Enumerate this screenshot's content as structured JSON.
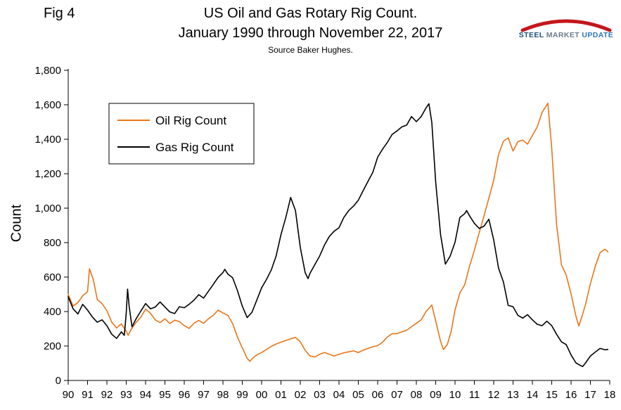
{
  "fig_label": "Fig 4",
  "title_line1": "US Oil and Gas Rotary Rig Count.",
  "title_line2": "January 1990 through November 22, 2017",
  "source": "Source Baker Hughes.",
  "logo": {
    "steel": "STEEL",
    "market": "MARKET",
    "update": "UPDATE",
    "swoosh_color": "#c4161c"
  },
  "chart_data": {
    "type": "line",
    "title": "US Oil and Gas Rotary Rig Count.",
    "subtitle": "January 1990 through November 22, 2017",
    "source": "Source Baker Hughes.",
    "xlabel": "",
    "ylabel": "Count",
    "xlim": [
      1990,
      2018
    ],
    "ylim": [
      0,
      1800
    ],
    "grid": false,
    "legend_position": "upper-left",
    "y_ticks": [
      {
        "value": 0,
        "label": "0"
      },
      {
        "value": 200,
        "label": "200"
      },
      {
        "value": 400,
        "label": "400"
      },
      {
        "value": 600,
        "label": "600"
      },
      {
        "value": 800,
        "label": "800"
      },
      {
        "value": 1000,
        "label": "1,000"
      },
      {
        "value": 1200,
        "label": "1,200"
      },
      {
        "value": 1400,
        "label": "1,400"
      },
      {
        "value": 1600,
        "label": "1,600"
      },
      {
        "value": 1800,
        "label": "1,800"
      }
    ],
    "x_ticks": [
      {
        "value": 1990,
        "label": "90"
      },
      {
        "value": 1991,
        "label": "91"
      },
      {
        "value": 1992,
        "label": "92"
      },
      {
        "value": 1993,
        "label": "93"
      },
      {
        "value": 1994,
        "label": "94"
      },
      {
        "value": 1995,
        "label": "95"
      },
      {
        "value": 1996,
        "label": "96"
      },
      {
        "value": 1997,
        "label": "97"
      },
      {
        "value": 1998,
        "label": "98"
      },
      {
        "value": 1999,
        "label": "99"
      },
      {
        "value": 2000,
        "label": "00"
      },
      {
        "value": 2001,
        "label": "01"
      },
      {
        "value": 2002,
        "label": "02"
      },
      {
        "value": 2003,
        "label": "03"
      },
      {
        "value": 2004,
        "label": "04"
      },
      {
        "value": 2005,
        "label": "05"
      },
      {
        "value": 2006,
        "label": "06"
      },
      {
        "value": 2007,
        "label": "07"
      },
      {
        "value": 2008,
        "label": "08"
      },
      {
        "value": 2009,
        "label": "09"
      },
      {
        "value": 2010,
        "label": "10"
      },
      {
        "value": 2011,
        "label": "11"
      },
      {
        "value": 2012,
        "label": "12"
      },
      {
        "value": 2013,
        "label": "13"
      },
      {
        "value": 2014,
        "label": "14"
      },
      {
        "value": 2015,
        "label": "15"
      },
      {
        "value": 2016,
        "label": "16"
      },
      {
        "value": 2017,
        "label": "17"
      },
      {
        "value": 2018,
        "label": "18"
      }
    ],
    "series": [
      {
        "name": "Oil Rig Count",
        "data_name": "oil-rig-count-line",
        "color": "#e8761b",
        "points": [
          [
            1990.0,
            500
          ],
          [
            1990.25,
            432
          ],
          [
            1990.5,
            452
          ],
          [
            1990.75,
            492
          ],
          [
            1991.0,
            515
          ],
          [
            1991.1,
            648
          ],
          [
            1991.3,
            585
          ],
          [
            1991.5,
            470
          ],
          [
            1991.75,
            446
          ],
          [
            1992.0,
            405
          ],
          [
            1992.25,
            338
          ],
          [
            1992.5,
            305
          ],
          [
            1992.75,
            328
          ],
          [
            1993.0,
            286
          ],
          [
            1993.1,
            262
          ],
          [
            1993.25,
            296
          ],
          [
            1993.5,
            336
          ],
          [
            1993.75,
            366
          ],
          [
            1994.0,
            414
          ],
          [
            1994.25,
            390
          ],
          [
            1994.5,
            352
          ],
          [
            1994.75,
            336
          ],
          [
            1995.0,
            358
          ],
          [
            1995.25,
            330
          ],
          [
            1995.5,
            350
          ],
          [
            1995.75,
            342
          ],
          [
            1996.0,
            318
          ],
          [
            1996.25,
            302
          ],
          [
            1996.5,
            332
          ],
          [
            1996.75,
            348
          ],
          [
            1997.0,
            332
          ],
          [
            1997.25,
            358
          ],
          [
            1997.5,
            378
          ],
          [
            1997.75,
            408
          ],
          [
            1998.0,
            392
          ],
          [
            1998.25,
            378
          ],
          [
            1998.5,
            330
          ],
          [
            1998.75,
            252
          ],
          [
            1999.0,
            190
          ],
          [
            1999.25,
            128
          ],
          [
            1999.4,
            111
          ],
          [
            1999.5,
            126
          ],
          [
            1999.75,
            148
          ],
          [
            2000.0,
            162
          ],
          [
            2000.25,
            180
          ],
          [
            2000.5,
            198
          ],
          [
            2000.75,
            212
          ],
          [
            2001.0,
            222
          ],
          [
            2001.25,
            232
          ],
          [
            2001.5,
            242
          ],
          [
            2001.75,
            250
          ],
          [
            2002.0,
            225
          ],
          [
            2002.25,
            175
          ],
          [
            2002.5,
            142
          ],
          [
            2002.75,
            136
          ],
          [
            2003.0,
            152
          ],
          [
            2003.25,
            162
          ],
          [
            2003.5,
            152
          ],
          [
            2003.75,
            142
          ],
          [
            2004.0,
            152
          ],
          [
            2004.25,
            161
          ],
          [
            2004.5,
            166
          ],
          [
            2004.75,
            172
          ],
          [
            2005.0,
            162
          ],
          [
            2005.25,
            176
          ],
          [
            2005.5,
            186
          ],
          [
            2005.75,
            196
          ],
          [
            2006.0,
            202
          ],
          [
            2006.25,
            222
          ],
          [
            2006.5,
            252
          ],
          [
            2006.75,
            272
          ],
          [
            2007.0,
            272
          ],
          [
            2007.25,
            282
          ],
          [
            2007.5,
            292
          ],
          [
            2007.75,
            312
          ],
          [
            2008.0,
            332
          ],
          [
            2008.25,
            352
          ],
          [
            2008.5,
            400
          ],
          [
            2008.8,
            438
          ],
          [
            2009.0,
            345
          ],
          [
            2009.25,
            228
          ],
          [
            2009.4,
            179
          ],
          [
            2009.6,
            208
          ],
          [
            2009.8,
            285
          ],
          [
            2010.0,
            410
          ],
          [
            2010.25,
            508
          ],
          [
            2010.5,
            556
          ],
          [
            2010.75,
            662
          ],
          [
            2011.0,
            756
          ],
          [
            2011.25,
            858
          ],
          [
            2011.5,
            956
          ],
          [
            2011.75,
            1058
          ],
          [
            2012.0,
            1162
          ],
          [
            2012.25,
            1312
          ],
          [
            2012.5,
            1388
          ],
          [
            2012.75,
            1408
          ],
          [
            2013.0,
            1332
          ],
          [
            2013.25,
            1386
          ],
          [
            2013.5,
            1395
          ],
          [
            2013.75,
            1372
          ],
          [
            2014.0,
            1422
          ],
          [
            2014.25,
            1472
          ],
          [
            2014.5,
            1556
          ],
          [
            2014.8,
            1609
          ],
          [
            2015.0,
            1348
          ],
          [
            2015.25,
            905
          ],
          [
            2015.5,
            672
          ],
          [
            2015.75,
            612
          ],
          [
            2016.0,
            502
          ],
          [
            2016.25,
            374
          ],
          [
            2016.4,
            316
          ],
          [
            2016.6,
            385
          ],
          [
            2016.75,
            442
          ],
          [
            2017.0,
            562
          ],
          [
            2017.25,
            662
          ],
          [
            2017.5,
            742
          ],
          [
            2017.75,
            762
          ],
          [
            2017.9,
            747
          ]
        ]
      },
      {
        "name": "Gas Rig Count",
        "data_name": "gas-rig-count-line",
        "color": "#000000",
        "points": [
          [
            1990.0,
            486
          ],
          [
            1990.25,
            416
          ],
          [
            1990.5,
            386
          ],
          [
            1990.75,
            442
          ],
          [
            1991.0,
            408
          ],
          [
            1991.25,
            368
          ],
          [
            1991.5,
            338
          ],
          [
            1991.75,
            352
          ],
          [
            1992.0,
            318
          ],
          [
            1992.25,
            268
          ],
          [
            1992.5,
            244
          ],
          [
            1992.75,
            282
          ],
          [
            1992.9,
            262
          ],
          [
            1993.0,
            392
          ],
          [
            1993.07,
            530
          ],
          [
            1993.15,
            432
          ],
          [
            1993.3,
            312
          ],
          [
            1993.5,
            356
          ],
          [
            1993.75,
            402
          ],
          [
            1994.0,
            446
          ],
          [
            1994.25,
            416
          ],
          [
            1994.5,
            426
          ],
          [
            1994.75,
            456
          ],
          [
            1995.0,
            426
          ],
          [
            1995.25,
            398
          ],
          [
            1995.5,
            388
          ],
          [
            1995.75,
            428
          ],
          [
            1996.0,
            422
          ],
          [
            1996.25,
            442
          ],
          [
            1996.5,
            466
          ],
          [
            1996.75,
            498
          ],
          [
            1997.0,
            478
          ],
          [
            1997.25,
            518
          ],
          [
            1997.5,
            558
          ],
          [
            1997.75,
            598
          ],
          [
            1998.0,
            626
          ],
          [
            1998.1,
            645
          ],
          [
            1998.25,
            618
          ],
          [
            1998.5,
            596
          ],
          [
            1998.75,
            522
          ],
          [
            1999.0,
            432
          ],
          [
            1999.25,
            365
          ],
          [
            1999.5,
            396
          ],
          [
            1999.75,
            466
          ],
          [
            2000.0,
            538
          ],
          [
            2000.25,
            586
          ],
          [
            2000.5,
            642
          ],
          [
            2000.75,
            722
          ],
          [
            2001.0,
            846
          ],
          [
            2001.25,
            946
          ],
          [
            2001.5,
            1062
          ],
          [
            2001.75,
            986
          ],
          [
            2002.0,
            772
          ],
          [
            2002.25,
            626
          ],
          [
            2002.4,
            591
          ],
          [
            2002.5,
            622
          ],
          [
            2002.75,
            672
          ],
          [
            2003.0,
            722
          ],
          [
            2003.25,
            786
          ],
          [
            2003.5,
            836
          ],
          [
            2003.75,
            866
          ],
          [
            2004.0,
            886
          ],
          [
            2004.25,
            946
          ],
          [
            2004.5,
            986
          ],
          [
            2004.75,
            1012
          ],
          [
            2005.0,
            1046
          ],
          [
            2005.25,
            1102
          ],
          [
            2005.5,
            1156
          ],
          [
            2005.75,
            1208
          ],
          [
            2006.0,
            1296
          ],
          [
            2006.25,
            1342
          ],
          [
            2006.5,
            1382
          ],
          [
            2006.75,
            1428
          ],
          [
            2007.0,
            1448
          ],
          [
            2007.25,
            1472
          ],
          [
            2007.5,
            1482
          ],
          [
            2007.75,
            1532
          ],
          [
            2008.0,
            1502
          ],
          [
            2008.25,
            1532
          ],
          [
            2008.5,
            1582
          ],
          [
            2008.65,
            1606
          ],
          [
            2008.8,
            1498
          ],
          [
            2009.0,
            1152
          ],
          [
            2009.25,
            848
          ],
          [
            2009.5,
            675
          ],
          [
            2009.75,
            722
          ],
          [
            2010.0,
            802
          ],
          [
            2010.25,
            946
          ],
          [
            2010.5,
            968
          ],
          [
            2010.6,
            986
          ],
          [
            2010.75,
            956
          ],
          [
            2011.0,
            912
          ],
          [
            2011.25,
            882
          ],
          [
            2011.5,
            896
          ],
          [
            2011.75,
            936
          ],
          [
            2012.0,
            816
          ],
          [
            2012.25,
            652
          ],
          [
            2012.5,
            572
          ],
          [
            2012.75,
            436
          ],
          [
            2013.0,
            428
          ],
          [
            2013.25,
            378
          ],
          [
            2013.5,
            362
          ],
          [
            2013.75,
            382
          ],
          [
            2014.0,
            352
          ],
          [
            2014.25,
            326
          ],
          [
            2014.5,
            318
          ],
          [
            2014.75,
            344
          ],
          [
            2015.0,
            318
          ],
          [
            2015.25,
            268
          ],
          [
            2015.5,
            224
          ],
          [
            2015.75,
            208
          ],
          [
            2016.0,
            148
          ],
          [
            2016.25,
            102
          ],
          [
            2016.5,
            86
          ],
          [
            2016.6,
            81
          ],
          [
            2016.75,
            102
          ],
          [
            2017.0,
            142
          ],
          [
            2017.25,
            165
          ],
          [
            2017.5,
            186
          ],
          [
            2017.75,
            178
          ],
          [
            2017.9,
            180
          ]
        ]
      }
    ]
  }
}
